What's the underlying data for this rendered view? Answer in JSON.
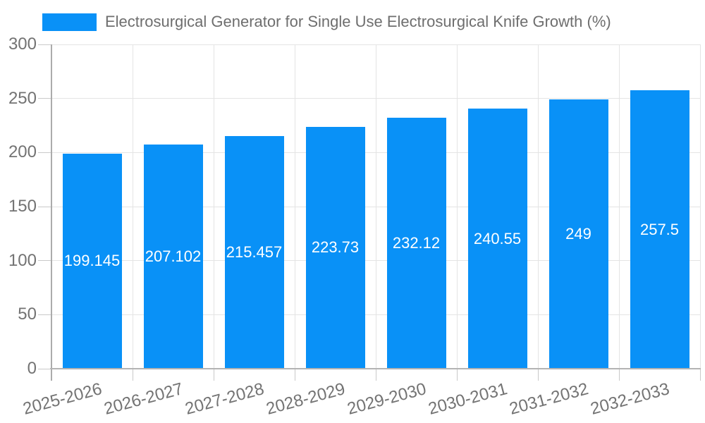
{
  "chart_data": {
    "type": "bar",
    "title": "",
    "series_name": "Electrosurgical Generator for Single Use Electrosurgical Knife Growth (%)",
    "categories": [
      "2025-2026",
      "2026-2027",
      "2027-2028",
      "2028-2029",
      "2029-2030",
      "2030-2031",
      "2031-2032",
      "2032-2033"
    ],
    "values": [
      199.145,
      207.102,
      215.457,
      223.73,
      232.12,
      240.55,
      249,
      257.5
    ],
    "value_labels": [
      "199.145",
      "207.102",
      "215.457",
      "223.73",
      "232.12",
      "240.55",
      "249",
      "257.5"
    ],
    "xlabel": "",
    "ylabel": "",
    "ylim": [
      0,
      300
    ],
    "yticks": [
      0,
      50,
      100,
      150,
      200,
      250,
      300
    ],
    "grid": true,
    "legend_position": "top-left",
    "colors": {
      "bar": "#0991f7",
      "value_label": "#ffffff",
      "gridline": "#e4e4e4",
      "axis_line": "#b0b0b0",
      "tick": "#c9c9c9",
      "tick_label": "#737373",
      "legend_text": "#6e6e6e",
      "background": "#ffffff"
    }
  }
}
